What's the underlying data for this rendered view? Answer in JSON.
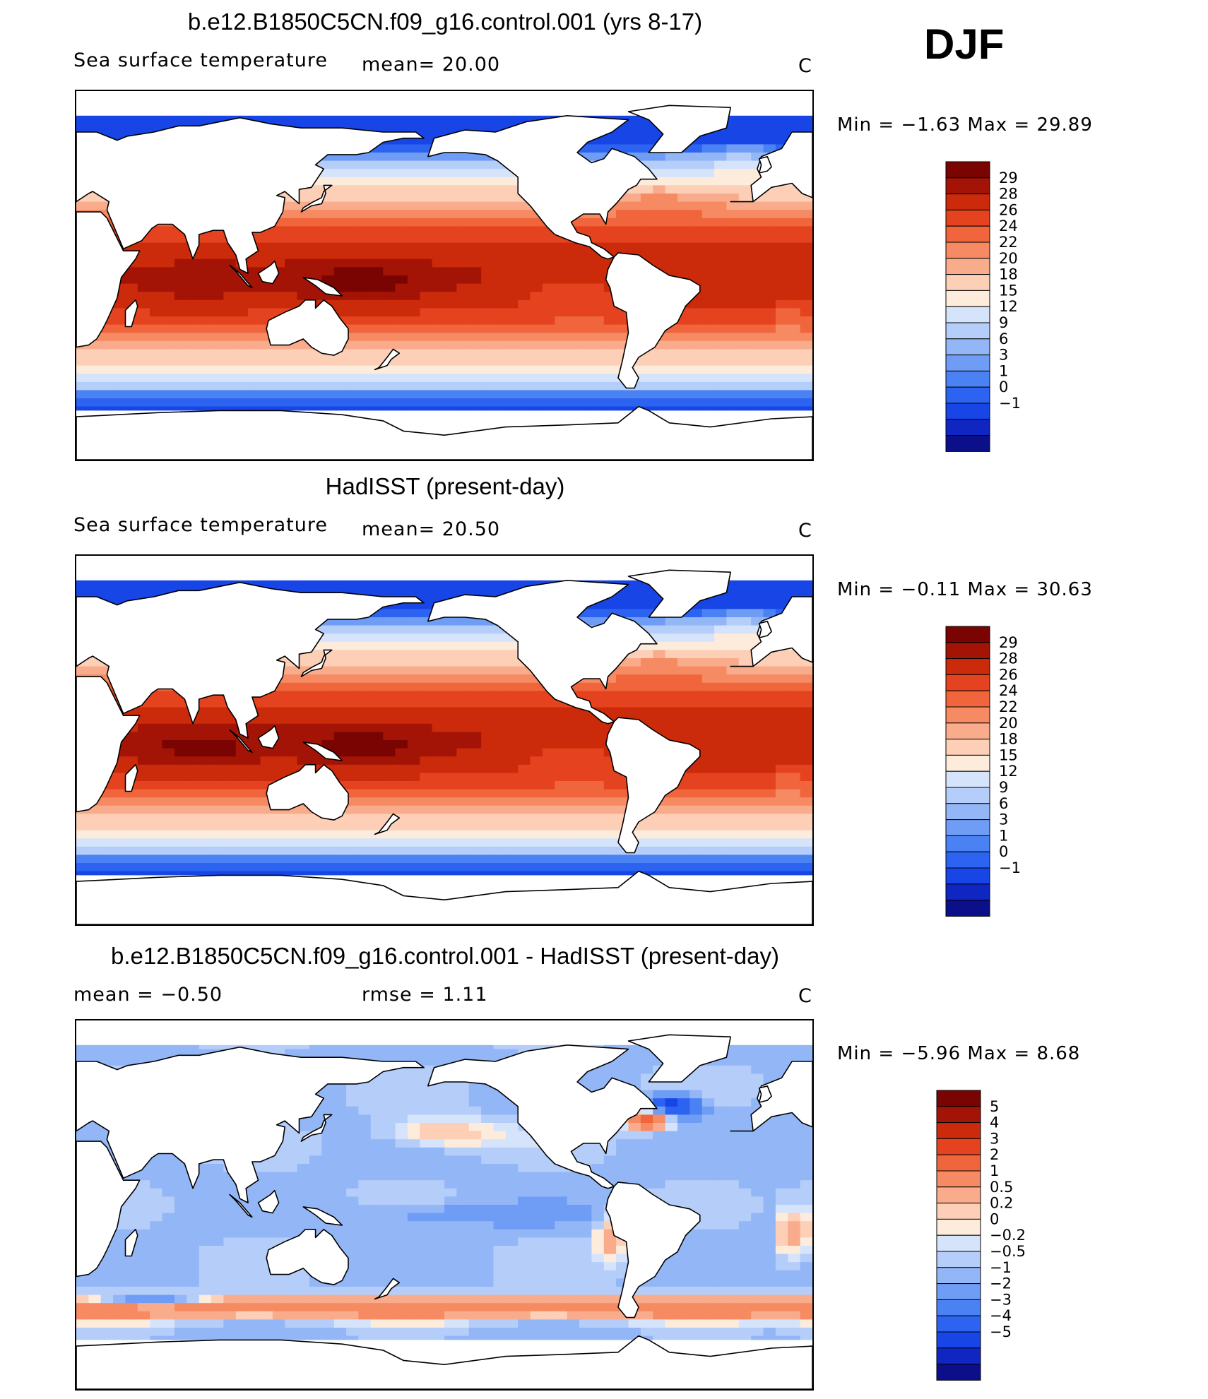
{
  "season": "DJF",
  "colors": {
    "sst": [
      "#0b0f8a",
      "#0f26c2",
      "#1745e6",
      "#2c63f0",
      "#4b82f3",
      "#6f9df5",
      "#93b6f7",
      "#b5cdf9",
      "#d5e4fb",
      "#fdebdc",
      "#fccfb6",
      "#f9ac8b",
      "#f68a62",
      "#f0653c",
      "#e5431f",
      "#cb2a0b",
      "#a31406",
      "#7a0402"
    ],
    "diff": [
      "#0b0f8a",
      "#0f26c2",
      "#1745e6",
      "#2c63f0",
      "#4b82f3",
      "#6f9df5",
      "#93b6f7",
      "#b5cdf9",
      "#d5e4fb",
      "#fdebdc",
      "#fccfb6",
      "#f9ac8b",
      "#f68a62",
      "#f0653c",
      "#e5431f",
      "#cb2a0b",
      "#a31406",
      "#7a0402"
    ]
  },
  "panels": [
    {
      "title": "b.e12.B1850C5CN.f09_g16.control.001 (yrs 8-17)",
      "left_text": "Sea surface temperature",
      "mean_text": "mean=   20.00",
      "units": "C",
      "minmax": "Min  =   −1.63  Max  =    29.89",
      "colorbar_labels": [
        "29",
        "28",
        "26",
        "24",
        "22",
        "20",
        "18",
        "15",
        "12",
        "9",
        "6",
        "3",
        "1",
        "0",
        "−1"
      ],
      "kind": "sst"
    },
    {
      "title": "HadISST (present-day)",
      "left_text": "Sea surface temperature",
      "mean_text": "mean=   20.50",
      "units": "C",
      "minmax": "Min  =   −0.11  Max  =    30.63",
      "colorbar_labels": [
        "29",
        "28",
        "26",
        "24",
        "22",
        "20",
        "18",
        "15",
        "12",
        "9",
        "6",
        "3",
        "1",
        "0",
        "−1"
      ],
      "kind": "sst"
    },
    {
      "title": "b.e12.B1850C5CN.f09_g16.control.001 - HadISST (present-day)",
      "left_text": "mean  =    −0.50",
      "mean_text": "rmse  =     1.11",
      "units": "C",
      "minmax": "Min  =   −5.96  Max  =     8.68",
      "colorbar_labels": [
        "5",
        "4",
        "3",
        "2",
        "1",
        "0.5",
        "0.2",
        "0",
        "−0.2",
        "−0.5",
        "−1",
        "−2",
        "−3",
        "−4",
        "−5"
      ],
      "kind": "diff"
    }
  ],
  "chart_data": [
    {
      "type": "heatmap",
      "title": "b.e12.B1850C5CN.f09_g16.control.001 (yrs 8-17)",
      "variable": "Sea surface temperature",
      "units": "C",
      "mean": 20.0,
      "min": -1.63,
      "max": 29.89,
      "levels": [
        -1,
        0,
        1,
        3,
        6,
        9,
        12,
        15,
        18,
        20,
        22,
        24,
        26,
        28,
        29
      ]
    },
    {
      "type": "heatmap",
      "title": "HadISST (present-day)",
      "variable": "Sea surface temperature",
      "units": "C",
      "mean": 20.5,
      "min": -0.11,
      "max": 30.63,
      "levels": [
        -1,
        0,
        1,
        3,
        6,
        9,
        12,
        15,
        18,
        20,
        22,
        24,
        26,
        28,
        29
      ]
    },
    {
      "type": "heatmap",
      "title": "b.e12.B1850C5CN.f09_g16.control.001 - HadISST (present-day)",
      "units": "C",
      "mean": -0.5,
      "rmse": 1.11,
      "min": -5.96,
      "max": 8.68,
      "levels": [
        -5,
        -4,
        -3,
        -2,
        -1,
        -0.5,
        -0.2,
        0,
        0.2,
        0.5,
        1,
        2,
        3,
        4,
        5
      ]
    }
  ]
}
